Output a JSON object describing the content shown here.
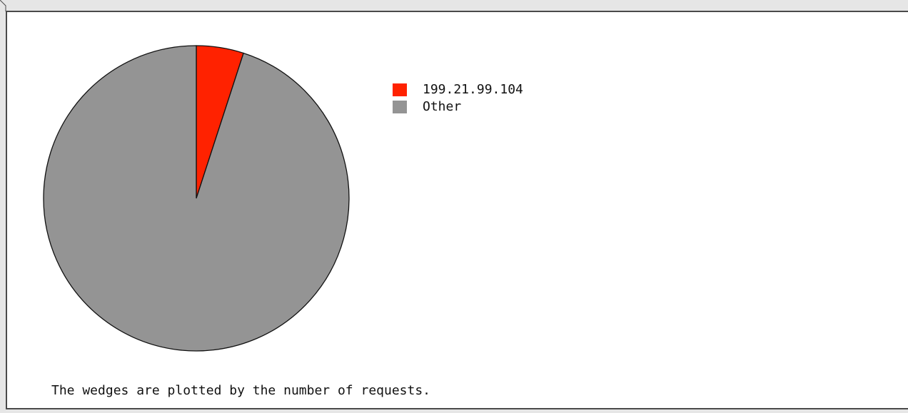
{
  "chart_data": {
    "type": "pie",
    "slices": [
      {
        "label": "199.21.99.104",
        "value": 5,
        "color": "#ff2200"
      },
      {
        "label": "Other",
        "value": 95,
        "color": "#949494"
      }
    ],
    "legend_position": "right"
  },
  "caption": "The wedges are plotted by the number of requests."
}
